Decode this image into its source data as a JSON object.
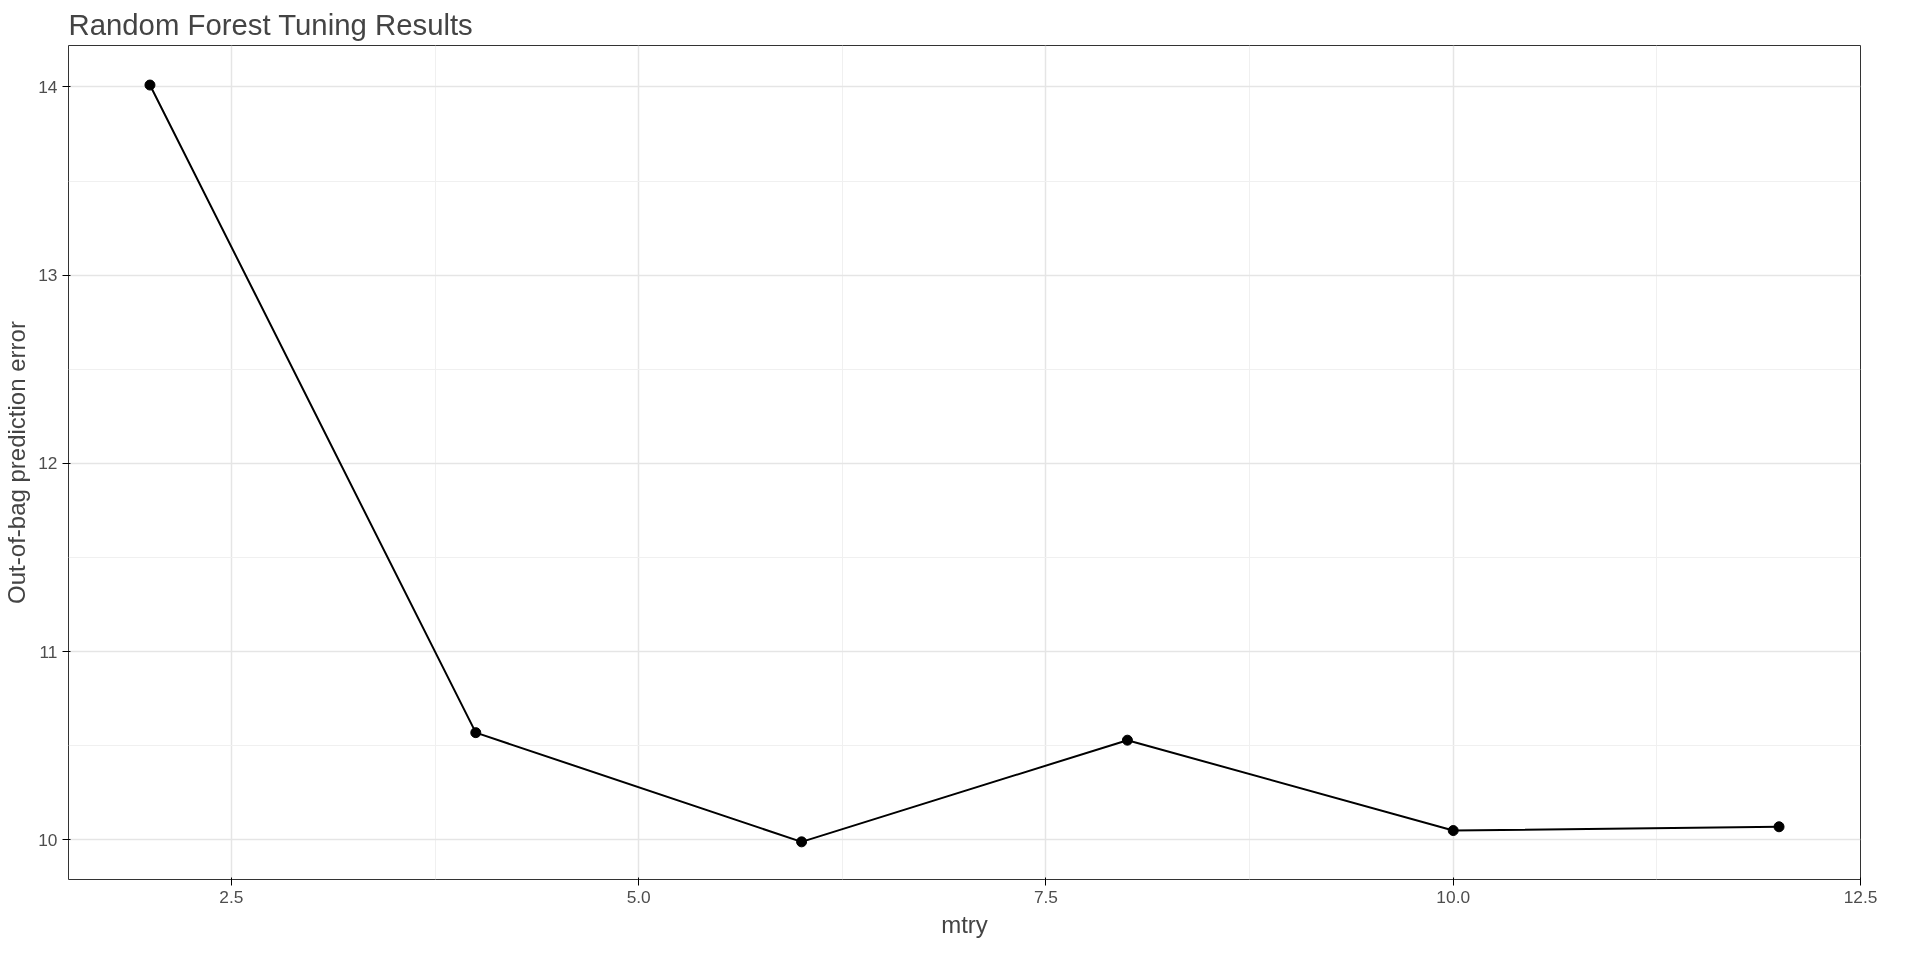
{
  "chart_data": {
    "type": "line",
    "title": "Random Forest Tuning Results",
    "xlabel": "mtry",
    "ylabel": "Out-of-bag prediction error",
    "x": [
      2,
      4,
      6,
      8,
      10,
      12
    ],
    "series": [
      {
        "color": "#000000",
        "values": [
          14.01,
          10.57,
          9.99,
          10.53,
          10.05,
          10.07
        ]
      }
    ],
    "xlim": [
      1.5,
      12.5
    ],
    "ylim": [
      9.79,
      14.22
    ],
    "xticks": [
      {
        "value": 2.5,
        "label": "2.5"
      },
      {
        "value": 5,
        "label": "5.0"
      },
      {
        "value": 7.5,
        "label": "7.5"
      },
      {
        "value": 10,
        "label": "10.0"
      },
      {
        "value": 12.5,
        "label": "12.5"
      }
    ],
    "yticks": [
      10,
      11,
      12,
      13,
      14
    ],
    "grid": true,
    "marker": "circle",
    "line_style": "solid"
  }
}
